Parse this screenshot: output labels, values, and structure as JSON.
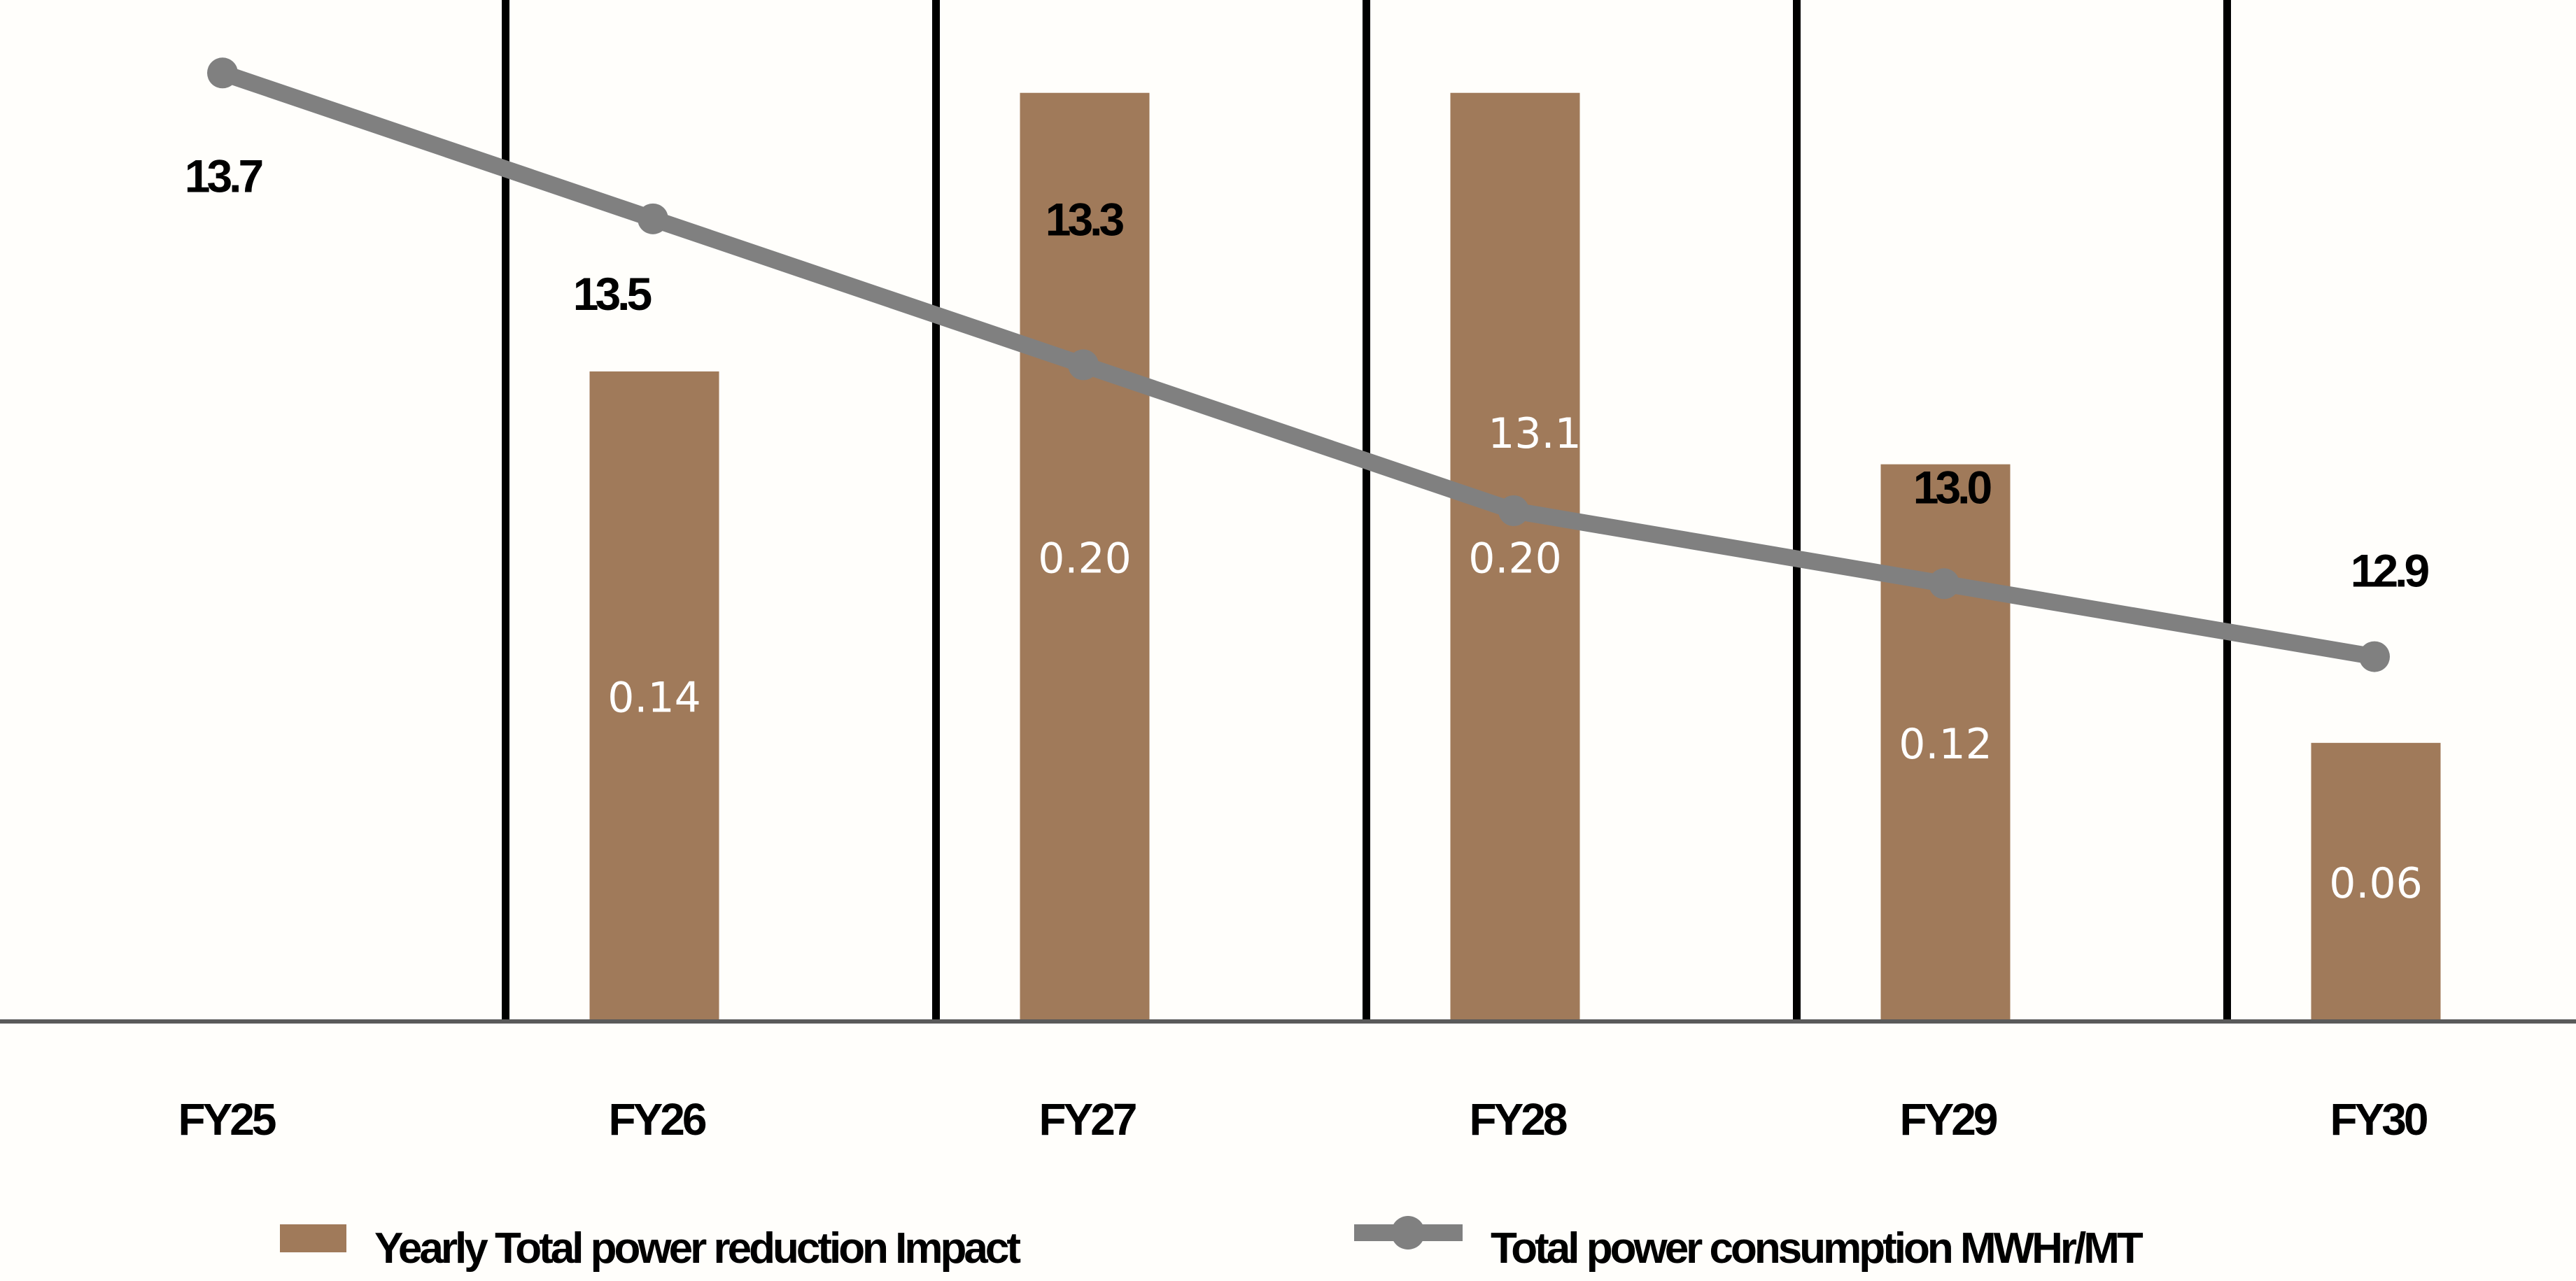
{
  "chart_data": {
    "type": "bar",
    "categories": [
      "FY25",
      "FY26",
      "FY27",
      "FY28",
      "FY29",
      "FY30"
    ],
    "series": [
      {
        "name": "Yearly Total power reduction Impact",
        "type": "bar",
        "values": [
          null,
          0.14,
          0.2,
          0.2,
          0.12,
          0.06
        ],
        "labels": [
          "",
          "0.14",
          "0.20",
          "0.20",
          "0.12",
          "0.06"
        ],
        "color": "#a07a5a"
      },
      {
        "name": "Total power consumption MWHr/MT",
        "type": "line",
        "values": [
          13.7,
          13.5,
          13.3,
          13.1,
          13.0,
          12.9
        ],
        "labels": [
          "13.7",
          "13.5",
          "13.3",
          "13.1",
          "13.0",
          "12.9"
        ],
        "color": "#808080"
      }
    ],
    "bar_axis": {
      "ylim": [
        0,
        0.22
      ]
    },
    "line_axis": {
      "ylim": [
        12.4,
        13.8
      ]
    },
    "xlabel": "",
    "ylabel": "",
    "grid": false,
    "legend": "bottom",
    "colors": {
      "bar": "#a07a5a",
      "line": "#808080",
      "axis": "#5a5a5a",
      "divider": "#000000"
    }
  }
}
